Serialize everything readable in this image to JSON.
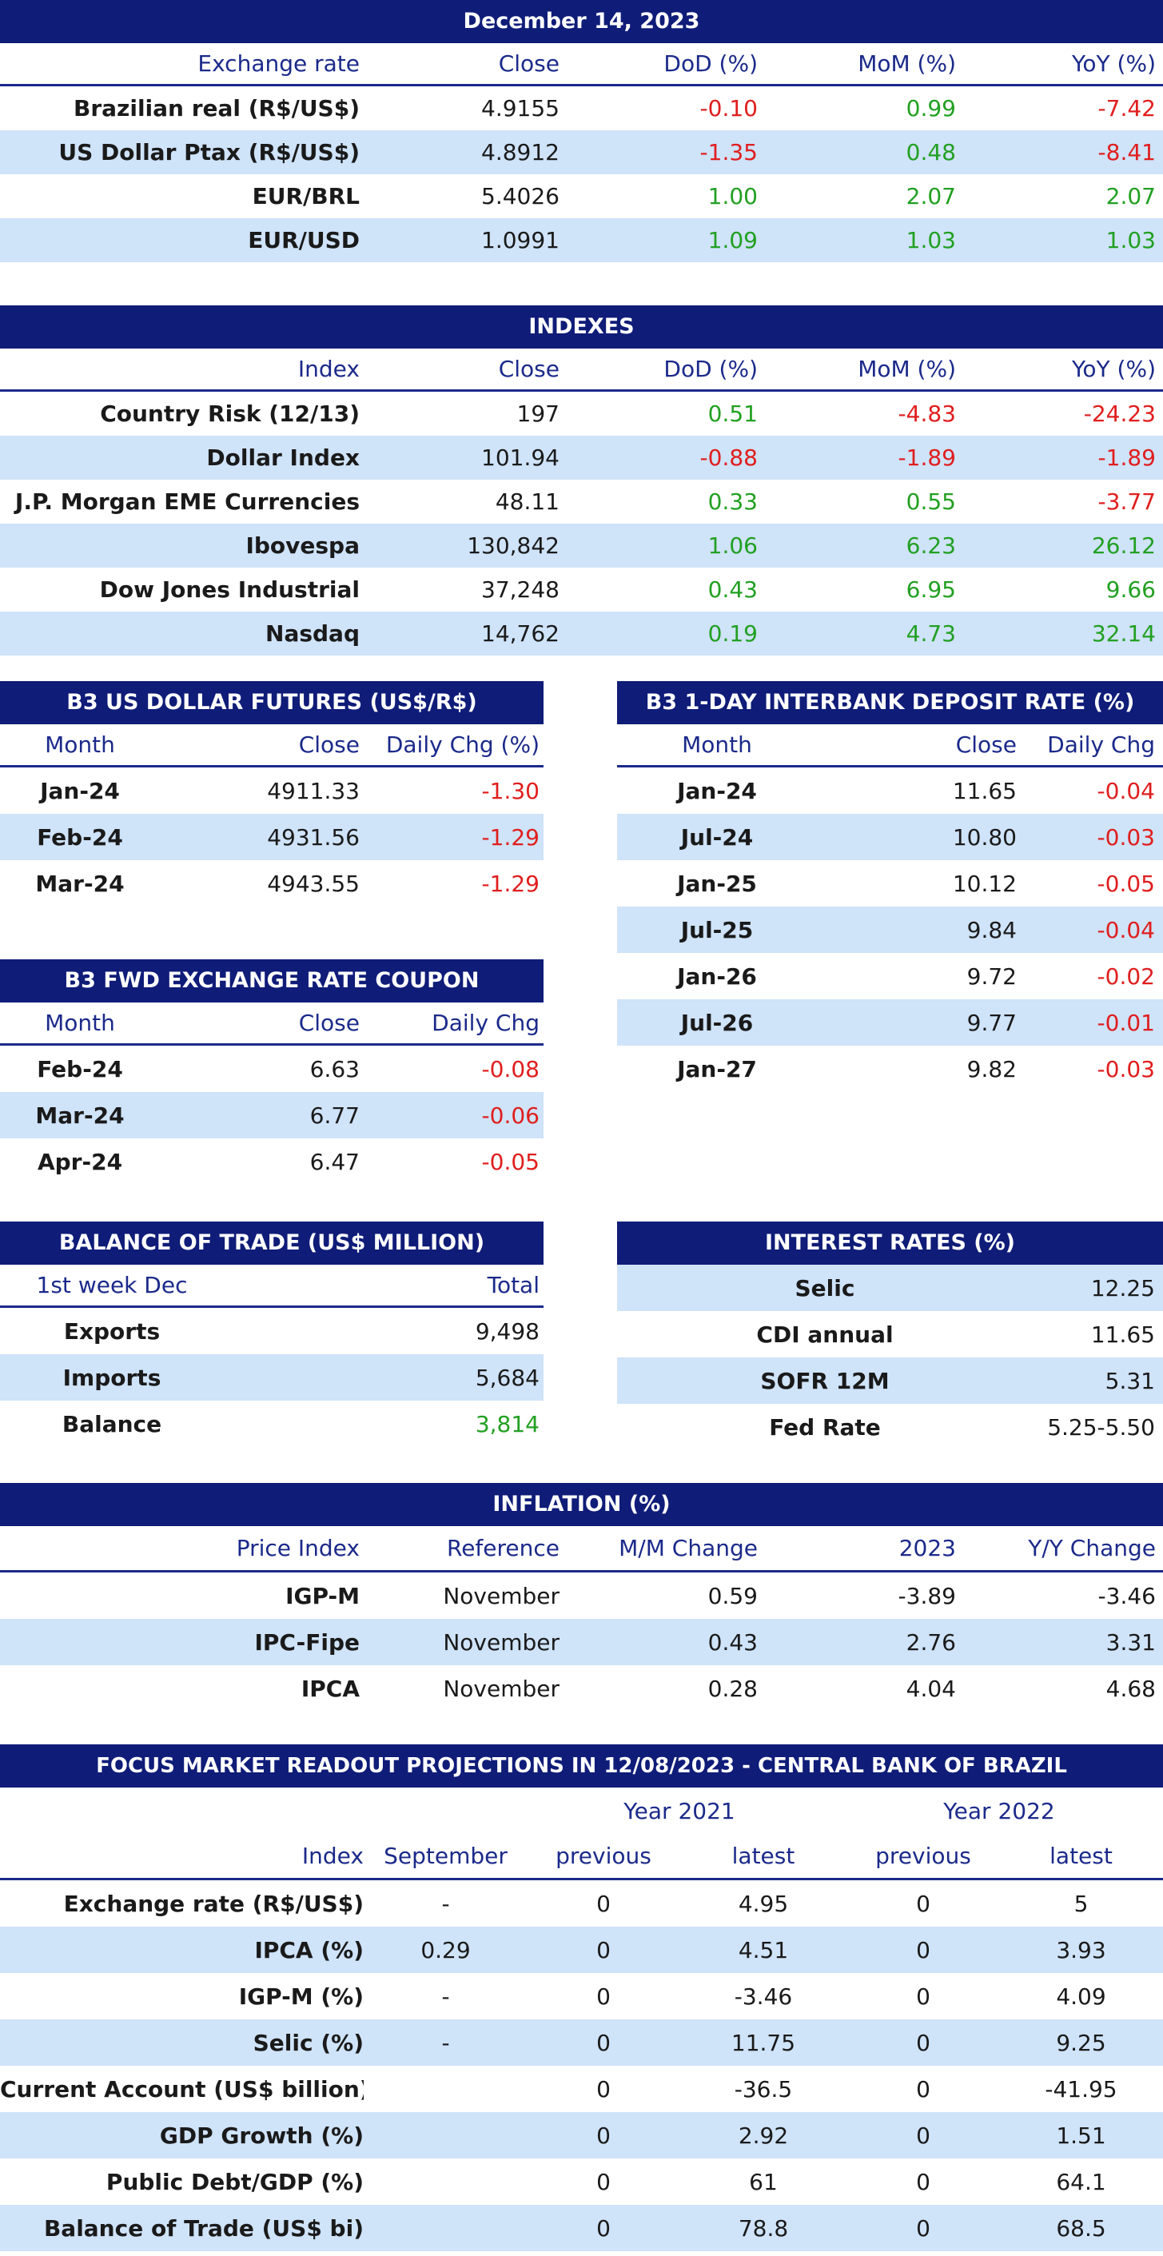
{
  "exchange": {
    "date_title": "December 14, 2023",
    "columns": [
      "Exchange rate",
      "Close",
      "DoD (%)",
      "MoM (%)",
      "YoY (%)"
    ],
    "rows": [
      {
        "name": "Brazilian real (R$/US$)",
        "close": "4.9155",
        "dod": "-0.10",
        "mom": "0.99",
        "yoy": "-7.42"
      },
      {
        "name": "US Dollar Ptax (R$/US$)",
        "close": "4.8912",
        "dod": "-1.35",
        "mom": "0.48",
        "yoy": "-8.41"
      },
      {
        "name": "EUR/BRL",
        "close": "5.4026",
        "dod": "1.00",
        "mom": "2.07",
        "yoy": "2.07"
      },
      {
        "name": "EUR/USD",
        "close": "1.0991",
        "dod": "1.09",
        "mom": "1.03",
        "yoy": "1.03"
      }
    ]
  },
  "indexes": {
    "title": "INDEXES",
    "columns": [
      "Index",
      "Close",
      "DoD (%)",
      "MoM (%)",
      "YoY (%)"
    ],
    "rows": [
      {
        "name": "Country Risk (12/13)",
        "close": "197",
        "dod": "0.51",
        "mom": "-4.83",
        "yoy": "-24.23"
      },
      {
        "name": "Dollar Index",
        "close": "101.94",
        "dod": "-0.88",
        "mom": "-1.89",
        "yoy": "-1.89"
      },
      {
        "name": "J.P. Morgan EME Currencies",
        "close": "48.11",
        "dod": "0.33",
        "mom": "0.55",
        "yoy": "-3.77"
      },
      {
        "name": "Ibovespa",
        "close": "130,842",
        "dod": "1.06",
        "mom": "6.23",
        "yoy": "26.12"
      },
      {
        "name": "Dow Jones Industrial",
        "close": "37,248",
        "dod": "0.43",
        "mom": "6.95",
        "yoy": "9.66"
      },
      {
        "name": "Nasdaq",
        "close": "14,762",
        "dod": "0.19",
        "mom": "4.73",
        "yoy": "32.14"
      }
    ]
  },
  "dollar_futures": {
    "title": "B3 US DOLLAR FUTURES (US$/R$)",
    "columns": [
      "Month",
      "Close",
      "Daily Chg (%)"
    ],
    "rows": [
      {
        "month": "Jan-24",
        "close": "4911.33",
        "chg": "-1.30"
      },
      {
        "month": "Feb-24",
        "close": "4931.56",
        "chg": "-1.29"
      },
      {
        "month": "Mar-24",
        "close": "4943.55",
        "chg": "-1.29"
      }
    ]
  },
  "interbank": {
    "title": "B3 1-DAY INTERBANK DEPOSIT RATE (%)",
    "columns": [
      "Month",
      "Close",
      "Daily Chg"
    ],
    "rows": [
      {
        "month": "Jan-24",
        "close": "11.65",
        "chg": "-0.04"
      },
      {
        "month": "Jul-24",
        "close": "10.80",
        "chg": "-0.03"
      },
      {
        "month": "Jan-25",
        "close": "10.12",
        "chg": "-0.05"
      },
      {
        "month": "Jul-25",
        "close": "9.84",
        "chg": "-0.04"
      },
      {
        "month": "Jan-26",
        "close": "9.72",
        "chg": "-0.02"
      },
      {
        "month": "Jul-26",
        "close": "9.77",
        "chg": "-0.01"
      },
      {
        "month": "Jan-27",
        "close": "9.82",
        "chg": "-0.03"
      }
    ]
  },
  "fwd_coupon": {
    "title": "B3 FWD EXCHANGE RATE COUPON",
    "columns": [
      "Month",
      "Close",
      "Daily Chg"
    ],
    "rows": [
      {
        "month": "Feb-24",
        "close": "6.63",
        "chg": "-0.08"
      },
      {
        "month": "Mar-24",
        "close": "6.77",
        "chg": "-0.06"
      },
      {
        "month": "Apr-24",
        "close": "6.47",
        "chg": "-0.05"
      }
    ]
  },
  "trade": {
    "title": "BALANCE OF TRADE (US$ MILLION)",
    "columns": [
      "1st week Dec",
      "Total"
    ],
    "rows": [
      {
        "name": "Exports",
        "value": "9,498"
      },
      {
        "name": "Imports",
        "value": "5,684"
      },
      {
        "name": "Balance",
        "value": "3,814"
      }
    ]
  },
  "interest": {
    "title": "INTEREST RATES (%)",
    "rows": [
      {
        "name": "Selic",
        "value": "12.25"
      },
      {
        "name": "CDI annual",
        "value": "11.65"
      },
      {
        "name": "SOFR 12M",
        "value": "5.31"
      },
      {
        "name": "Fed Rate",
        "value": "5.25-5.50"
      }
    ]
  },
  "inflation": {
    "title": "INFLATION (%)",
    "columns": [
      "Price Index",
      "Reference",
      "M/M Change",
      "2023",
      "Y/Y Change"
    ],
    "rows": [
      {
        "name": "IGP-M",
        "ref": "November",
        "mm": "0.59",
        "ytd": "-3.89",
        "yy": "-3.46"
      },
      {
        "name": "IPC-Fipe",
        "ref": "November",
        "mm": "0.43",
        "ytd": "2.76",
        "yy": "3.31"
      },
      {
        "name": "IPCA",
        "ref": "November",
        "mm": "0.28",
        "ytd": "4.04",
        "yy": "4.68"
      }
    ]
  },
  "focus": {
    "title": "FOCUS MARKET READOUT PROJECTIONS IN 12/08/2023 - CENTRAL BANK OF BRAZIL",
    "year_a": "Year 2021",
    "year_b": "Year 2022",
    "columns": [
      "Index",
      "September",
      "previous",
      "latest",
      "previous",
      "latest"
    ],
    "rows": [
      {
        "name": "Exchange rate (R$/US$)",
        "sep": "-",
        "p1": "0",
        "l1": "4.95",
        "p2": "0",
        "l2": "5"
      },
      {
        "name": "IPCA (%)",
        "sep": "0.29",
        "p1": "0",
        "l1": "4.51",
        "p2": "0",
        "l2": "3.93"
      },
      {
        "name": "IGP-M (%)",
        "sep": "-",
        "p1": "0",
        "l1": "-3.46",
        "p2": "0",
        "l2": "4.09"
      },
      {
        "name": "Selic (%)",
        "sep": "-",
        "p1": "0",
        "l1": "11.75",
        "p2": "0",
        "l2": "9.25"
      },
      {
        "name": "Current Account (US$ billion)",
        "sep": "",
        "p1": "0",
        "l1": "-36.5",
        "p2": "0",
        "l2": "-41.95"
      },
      {
        "name": "GDP Growth (%)",
        "sep": "",
        "p1": "0",
        "l1": "2.92",
        "p2": "0",
        "l2": "1.51"
      },
      {
        "name": "Public Debt/GDP (%)",
        "sep": "",
        "p1": "0",
        "l1": "61",
        "p2": "0",
        "l2": "64.1"
      },
      {
        "name": "Balance of Trade (US$ bi)",
        "sep": "",
        "p1": "0",
        "l1": "78.8",
        "p2": "0",
        "l2": "68.5"
      }
    ]
  },
  "colors": {
    "header_bg": "#0f1c78",
    "shade_bg": "#cfe3f9",
    "negative": "#e01e1e",
    "positive": "#22a022",
    "column_header": "#1b2a8a"
  }
}
